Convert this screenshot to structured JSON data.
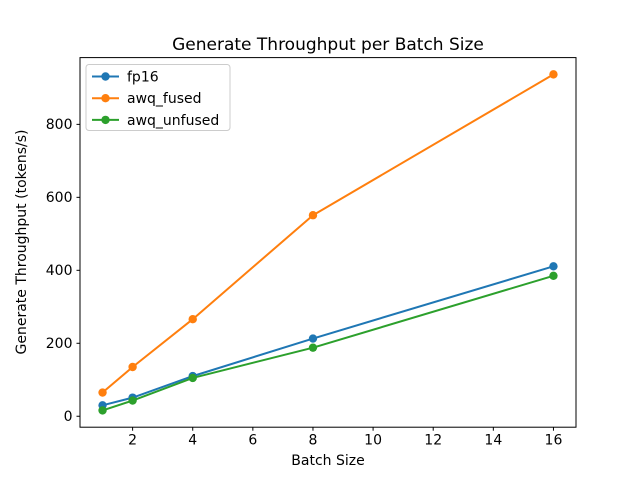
{
  "chart_data": {
    "type": "line",
    "title": "Generate Throughput per Batch Size",
    "xlabel": "Batch Size",
    "ylabel": "Generate Throughput (tokens/s)",
    "x": [
      1,
      2,
      4,
      8,
      16
    ],
    "series": [
      {
        "name": "fp16",
        "color": "#1f77b4",
        "values": [
          30,
          51,
          110,
          213,
          411
        ]
      },
      {
        "name": "awq_fused",
        "color": "#ff7f0e",
        "values": [
          65,
          135,
          266,
          551,
          937
        ]
      },
      {
        "name": "awq_unfused",
        "color": "#2ca02c",
        "values": [
          16,
          43,
          105,
          188,
          385
        ]
      }
    ],
    "x_ticks": [
      2,
      4,
      6,
      8,
      10,
      12,
      14,
      16
    ],
    "y_ticks": [
      0,
      200,
      400,
      600,
      800
    ],
    "xlim": [
      0.25,
      16.75
    ],
    "ylim": [
      -30,
      983
    ],
    "grid": false,
    "legend_position": "upper-left",
    "colors": {
      "axes": "#000000",
      "background": "#ffffff",
      "legend_border": "#cccccc"
    }
  }
}
